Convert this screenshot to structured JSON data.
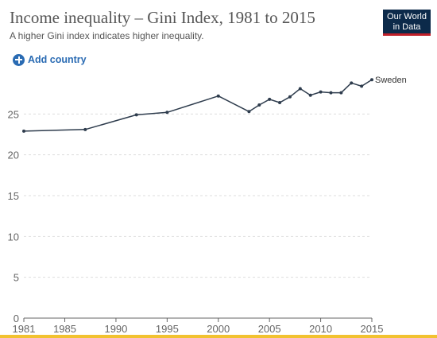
{
  "header": {
    "title": "Income inequality – Gini Index, 1981 to 2015",
    "subtitle": "A higher Gini index indicates higher inequality.",
    "logo_line1": "Our World",
    "logo_line2": "in Data"
  },
  "controls": {
    "add_country_label": "Add country",
    "add_icon": "plus-circle-icon"
  },
  "colors": {
    "series_line": "#2e3c4d",
    "grid": "#dddddd",
    "axis": "#666666",
    "accent": "#2a6bb3",
    "logo_bg": "#0c2a4a",
    "logo_accent": "#c0202a",
    "footer_bar": "#f2c230"
  },
  "chart_data": {
    "type": "line",
    "title": "Income inequality – Gini Index, 1981 to 2015",
    "subtitle": "A higher Gini index indicates higher inequality.",
    "xlabel": "",
    "ylabel": "",
    "xlim": [
      1981,
      2015
    ],
    "ylim": [
      0,
      30
    ],
    "yticks": [
      0,
      5,
      10,
      15,
      20,
      25
    ],
    "xtick_labels": [
      "1981",
      "1985",
      "1990",
      "1995",
      "2000",
      "2005",
      "2010",
      "2015"
    ],
    "xticks": [
      1981,
      1985,
      1990,
      1995,
      2000,
      2005,
      2010,
      2015
    ],
    "grid": "horizontal dashed",
    "legend": "end-of-line label",
    "series": [
      {
        "name": "Sweden",
        "x": [
          1981,
          1987,
          1992,
          1995,
          2000,
          2003,
          2004,
          2005,
          2006,
          2007,
          2008,
          2009,
          2010,
          2011,
          2012,
          2013,
          2014,
          2015
        ],
        "y": [
          22.9,
          23.1,
          24.9,
          25.2,
          27.2,
          25.3,
          26.1,
          26.8,
          26.4,
          27.1,
          28.1,
          27.3,
          27.7,
          27.6,
          27.6,
          28.8,
          28.4,
          29.2
        ]
      }
    ]
  }
}
